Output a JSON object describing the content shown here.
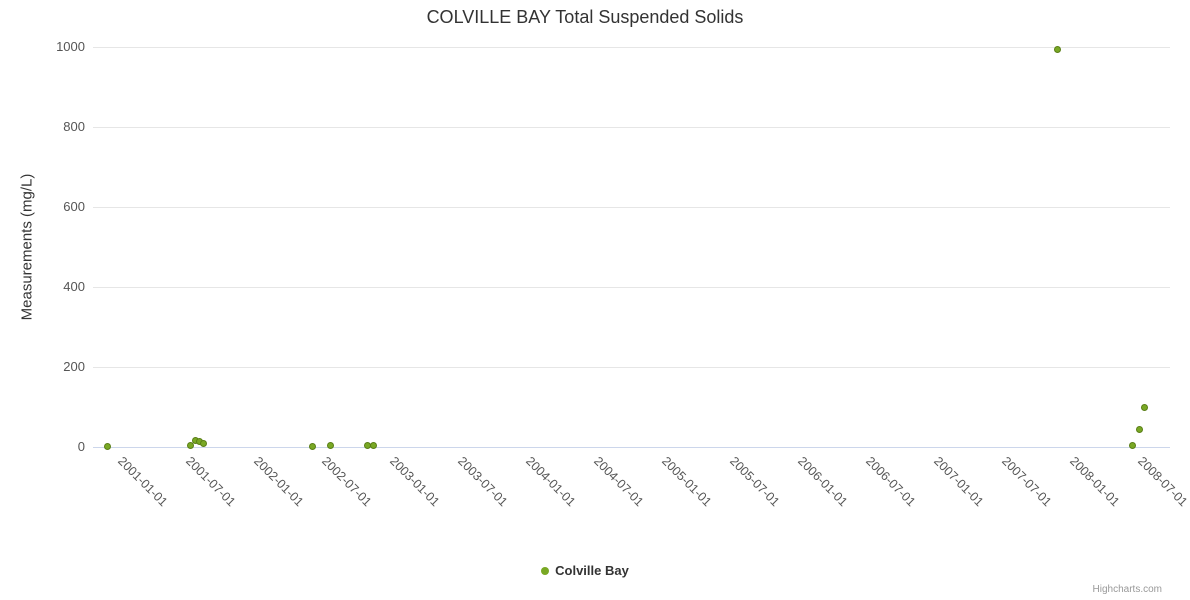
{
  "chart_data": {
    "type": "scatter",
    "title": "COLVILLE BAY Total Suspended Solids",
    "xlabel": "",
    "ylabel": "Measurements (mg/L)",
    "ylim": [
      0,
      1000
    ],
    "yticks": [
      0,
      200,
      400,
      600,
      800,
      1000
    ],
    "xticks": [
      "2001-01-01",
      "2001-07-01",
      "2002-01-01",
      "2002-07-01",
      "2003-01-01",
      "2003-07-01",
      "2004-01-01",
      "2004-07-01",
      "2005-01-01",
      "2005-07-01",
      "2006-01-01",
      "2006-07-01",
      "2007-01-01",
      "2007-07-01",
      "2008-01-01",
      "2008-07-01"
    ],
    "grid": "horizontal",
    "legend_position": "bottom",
    "series": [
      {
        "name": "Colville Bay",
        "color": "#79a824",
        "points": [
          {
            "date": "2000-10-29",
            "value": 1
          },
          {
            "date": "2001-06-10",
            "value": 3
          },
          {
            "date": "2001-06-22",
            "value": 16
          },
          {
            "date": "2001-07-04",
            "value": 13
          },
          {
            "date": "2001-07-16",
            "value": 9
          },
          {
            "date": "2002-05-03",
            "value": 1
          },
          {
            "date": "2002-06-21",
            "value": 5
          },
          {
            "date": "2002-09-28",
            "value": 3
          },
          {
            "date": "2002-10-14",
            "value": 3
          },
          {
            "date": "2007-10-25",
            "value": 995
          },
          {
            "date": "2008-05-14",
            "value": 3
          },
          {
            "date": "2008-06-02",
            "value": 45
          },
          {
            "date": "2008-06-15",
            "value": 100
          }
        ]
      }
    ],
    "credits": "Highcharts.com"
  }
}
